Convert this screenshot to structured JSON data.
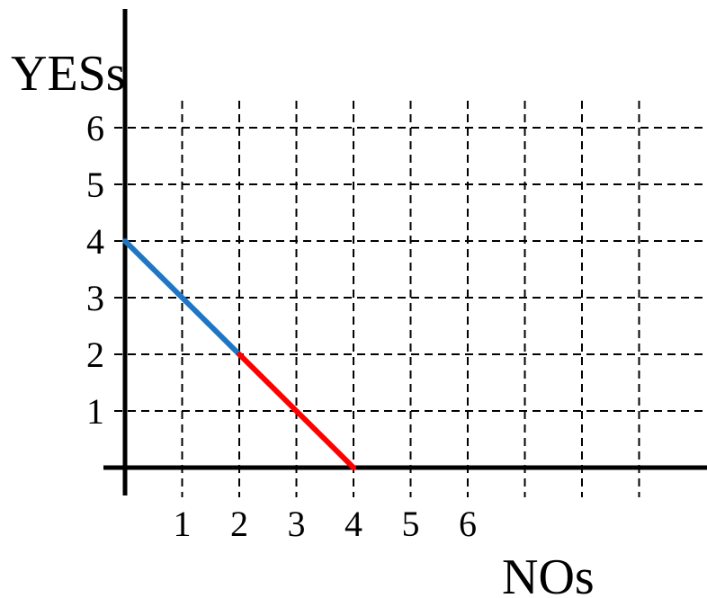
{
  "chart_data": {
    "type": "line",
    "xlabel": "NOs",
    "ylabel": "YESs",
    "xlim": [
      0,
      10
    ],
    "ylim": [
      0,
      6
    ],
    "x_ticks": [
      "1",
      "2",
      "3",
      "4",
      "5",
      "6"
    ],
    "y_ticks": [
      "1",
      "2",
      "3",
      "4",
      "5",
      "6"
    ],
    "grid": true,
    "grid_style": "dashed",
    "series": [
      {
        "color": "#1f77c4",
        "points": [
          [
            0,
            4
          ],
          [
            2,
            2
          ]
        ]
      },
      {
        "color": "#ff0000",
        "points": [
          [
            2,
            2
          ],
          [
            4,
            0
          ]
        ]
      }
    ]
  }
}
